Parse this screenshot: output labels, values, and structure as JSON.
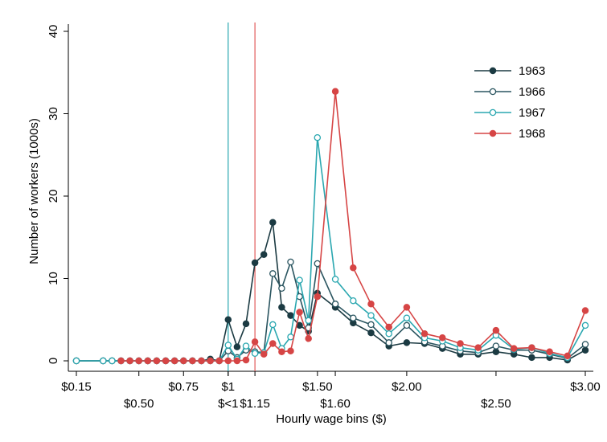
{
  "chart_data": {
    "type": "line",
    "xlabel": "Hourly wage bins ($)",
    "ylabel": "Number of workers (1000s)",
    "xlim": [
      0.15,
      3.0
    ],
    "ylim": [
      0,
      40
    ],
    "y_ticks": [
      0,
      10,
      20,
      30,
      40
    ],
    "x_ticks_row1": [
      {
        "value": 0.15,
        "label": "$0.15"
      },
      {
        "value": 0.75,
        "label": "$0.75"
      },
      {
        "value": 1.0,
        "label": "$1"
      },
      {
        "value": 1.5,
        "label": "$1.50"
      },
      {
        "value": 2.0,
        "label": "$2.00"
      },
      {
        "value": 3.0,
        "label": "$3.00"
      }
    ],
    "x_ticks_row2": [
      {
        "value": 0.5,
        "label": "$0.50"
      },
      {
        "value": 1.0,
        "label": "$<1"
      },
      {
        "value": 1.15,
        "label": "$1.15"
      },
      {
        "value": 1.6,
        "label": "$1.60"
      },
      {
        "value": 2.5,
        "label": "$2.50"
      }
    ],
    "minimum_wage_lines": [
      {
        "x": 1.0,
        "color": "#2AA7B0"
      },
      {
        "x": 1.15,
        "color": "#E05A5A"
      }
    ],
    "legend_position": "top-right",
    "grid": false,
    "series": [
      {
        "name": "1963",
        "color": "#1B3A42",
        "marker": "filled",
        "points": [
          [
            0.15,
            0
          ],
          [
            0.3,
            0
          ],
          [
            0.35,
            0
          ],
          [
            0.4,
            0
          ],
          [
            0.45,
            0
          ],
          [
            0.5,
            0
          ],
          [
            0.55,
            0
          ],
          [
            0.6,
            0
          ],
          [
            0.65,
            0
          ],
          [
            0.7,
            0
          ],
          [
            0.75,
            0
          ],
          [
            0.8,
            0
          ],
          [
            0.85,
            0
          ],
          [
            0.9,
            0.2
          ],
          [
            0.95,
            0
          ],
          [
            1.0,
            5.0
          ],
          [
            1.05,
            1.7
          ],
          [
            1.1,
            4.5
          ],
          [
            1.15,
            11.9
          ],
          [
            1.2,
            12.9
          ],
          [
            1.25,
            16.8
          ],
          [
            1.3,
            6.5
          ],
          [
            1.35,
            5.5
          ],
          [
            1.4,
            4.3
          ],
          [
            1.45,
            3.6
          ],
          [
            1.5,
            8.2
          ],
          [
            1.6,
            6.5
          ],
          [
            1.7,
            4.6
          ],
          [
            1.8,
            3.4
          ],
          [
            1.9,
            1.8
          ],
          [
            2.0,
            2.2
          ],
          [
            2.1,
            2.1
          ],
          [
            2.2,
            1.5
          ],
          [
            2.3,
            0.8
          ],
          [
            2.4,
            0.8
          ],
          [
            2.5,
            1.1
          ],
          [
            2.6,
            0.8
          ],
          [
            2.7,
            0.4
          ],
          [
            2.8,
            0.4
          ],
          [
            2.9,
            0.1
          ],
          [
            3.0,
            1.3
          ]
        ]
      },
      {
        "name": "1966",
        "color": "#2A5560",
        "marker": "hollow",
        "points": [
          [
            0.15,
            0
          ],
          [
            0.3,
            0
          ],
          [
            0.35,
            0
          ],
          [
            0.4,
            0
          ],
          [
            0.45,
            0
          ],
          [
            0.5,
            0
          ],
          [
            0.55,
            0
          ],
          [
            0.6,
            0
          ],
          [
            0.65,
            0
          ],
          [
            0.7,
            0
          ],
          [
            0.75,
            0
          ],
          [
            0.8,
            0
          ],
          [
            0.85,
            0
          ],
          [
            0.9,
            0
          ],
          [
            0.95,
            0
          ],
          [
            1.0,
            1.2
          ],
          [
            1.05,
            0.4
          ],
          [
            1.1,
            1.3
          ],
          [
            1.15,
            1.1
          ],
          [
            1.2,
            1.0
          ],
          [
            1.25,
            10.6
          ],
          [
            1.3,
            8.8
          ],
          [
            1.35,
            12.0
          ],
          [
            1.4,
            7.8
          ],
          [
            1.45,
            4.0
          ],
          [
            1.5,
            11.8
          ],
          [
            1.6,
            6.9
          ],
          [
            1.7,
            5.2
          ],
          [
            1.8,
            4.4
          ],
          [
            1.9,
            2.2
          ],
          [
            2.0,
            4.3
          ],
          [
            2.1,
            2.3
          ],
          [
            2.2,
            1.8
          ],
          [
            2.3,
            1.2
          ],
          [
            2.4,
            1.0
          ],
          [
            2.5,
            1.8
          ],
          [
            2.6,
            1.3
          ],
          [
            2.7,
            1.3
          ],
          [
            2.8,
            0.8
          ],
          [
            2.9,
            0.3
          ],
          [
            3.0,
            2.0
          ]
        ]
      },
      {
        "name": "1967",
        "color": "#2AA7B0",
        "marker": "hollow",
        "points": [
          [
            0.15,
            0
          ],
          [
            0.3,
            0
          ],
          [
            0.35,
            0
          ],
          [
            0.4,
            0
          ],
          [
            0.45,
            0
          ],
          [
            0.5,
            0
          ],
          [
            0.55,
            0
          ],
          [
            0.6,
            0
          ],
          [
            0.65,
            0
          ],
          [
            0.7,
            0
          ],
          [
            0.75,
            0
          ],
          [
            0.8,
            0
          ],
          [
            0.85,
            0
          ],
          [
            0.9,
            0
          ],
          [
            0.95,
            0
          ],
          [
            1.0,
            1.9
          ],
          [
            1.05,
            0.2
          ],
          [
            1.1,
            1.8
          ],
          [
            1.15,
            0.9
          ],
          [
            1.2,
            1.0
          ],
          [
            1.25,
            4.4
          ],
          [
            1.3,
            1.5
          ],
          [
            1.35,
            2.9
          ],
          [
            1.4,
            9.8
          ],
          [
            1.45,
            4.9
          ],
          [
            1.5,
            27.1
          ],
          [
            1.6,
            9.9
          ],
          [
            1.7,
            7.3
          ],
          [
            1.8,
            5.5
          ],
          [
            1.9,
            3.3
          ],
          [
            2.0,
            5.2
          ],
          [
            2.1,
            2.8
          ],
          [
            2.2,
            2.4
          ],
          [
            2.3,
            1.6
          ],
          [
            2.4,
            1.3
          ],
          [
            2.5,
            3.1
          ],
          [
            2.6,
            1.4
          ],
          [
            2.7,
            1.6
          ],
          [
            2.8,
            0.9
          ],
          [
            2.9,
            0.4
          ],
          [
            3.0,
            4.3
          ]
        ]
      },
      {
        "name": "1968",
        "color": "#D64545",
        "marker": "filled",
        "points": [
          [
            0.4,
            0
          ],
          [
            0.45,
            0
          ],
          [
            0.5,
            0
          ],
          [
            0.55,
            0
          ],
          [
            0.6,
            0
          ],
          [
            0.65,
            0
          ],
          [
            0.7,
            0
          ],
          [
            0.75,
            0
          ],
          [
            0.8,
            0
          ],
          [
            0.85,
            0
          ],
          [
            0.9,
            0
          ],
          [
            0.95,
            0
          ],
          [
            1.0,
            0
          ],
          [
            1.05,
            0
          ],
          [
            1.1,
            0.1
          ],
          [
            1.15,
            2.3
          ],
          [
            1.2,
            0.8
          ],
          [
            1.25,
            2.1
          ],
          [
            1.3,
            1.1
          ],
          [
            1.35,
            1.2
          ],
          [
            1.4,
            5.9
          ],
          [
            1.45,
            2.7
          ],
          [
            1.5,
            7.8
          ],
          [
            1.6,
            32.7
          ],
          [
            1.7,
            11.3
          ],
          [
            1.8,
            6.9
          ],
          [
            1.9,
            4.1
          ],
          [
            2.0,
            6.5
          ],
          [
            2.1,
            3.3
          ],
          [
            2.2,
            2.8
          ],
          [
            2.3,
            2.1
          ],
          [
            2.4,
            1.6
          ],
          [
            2.5,
            3.7
          ],
          [
            2.6,
            1.5
          ],
          [
            2.7,
            1.6
          ],
          [
            2.8,
            1.1
          ],
          [
            2.9,
            0.6
          ],
          [
            3.0,
            6.1
          ]
        ]
      }
    ]
  }
}
